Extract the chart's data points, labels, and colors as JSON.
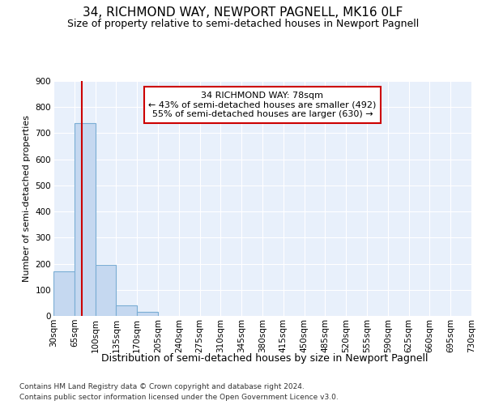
{
  "title": "34, RICHMOND WAY, NEWPORT PAGNELL, MK16 0LF",
  "subtitle": "Size of property relative to semi-detached houses in Newport Pagnell",
  "xlabel": "Distribution of semi-detached houses by size in Newport Pagnell",
  "ylabel": "Number of semi-detached properties",
  "property_size": 78,
  "annotation_title": "34 RICHMOND WAY: 78sqm",
  "annotation_line1": "← 43% of semi-detached houses are smaller (492)",
  "annotation_line2": "55% of semi-detached houses are larger (630) →",
  "footer1": "Contains HM Land Registry data © Crown copyright and database right 2024.",
  "footer2": "Contains public sector information licensed under the Open Government Licence v3.0.",
  "bin_edges": [
    30,
    65,
    100,
    135,
    170,
    205,
    240,
    275,
    310,
    345,
    380,
    415,
    450,
    485,
    520,
    555,
    590,
    625,
    660,
    695,
    730
  ],
  "bar_heights": [
    170,
    740,
    195,
    40,
    15,
    0,
    0,
    0,
    0,
    0,
    0,
    0,
    0,
    0,
    0,
    0,
    0,
    0,
    0,
    0
  ],
  "bar_color": "#c5d8f0",
  "bar_edge_color": "#7aadd4",
  "red_line_color": "#cc0000",
  "annotation_box_edge_color": "#cc0000",
  "background_color": "#e8f0fb",
  "grid_color": "#ffffff",
  "ylim": [
    0,
    900
  ],
  "yticks": [
    0,
    100,
    200,
    300,
    400,
    500,
    600,
    700,
    800,
    900
  ],
  "title_fontsize": 11,
  "subtitle_fontsize": 9,
  "ylabel_fontsize": 8,
  "xlabel_fontsize": 9,
  "tick_fontsize": 7.5,
  "annotation_fontsize": 8,
  "footer_fontsize": 6.5
}
